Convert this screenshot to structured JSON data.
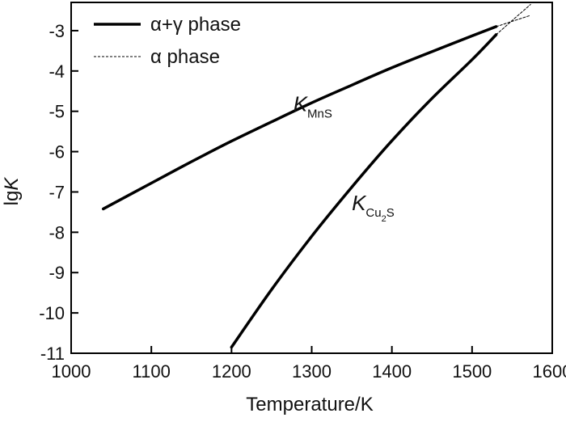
{
  "chart_data": {
    "type": "line",
    "xlabel": "Temperature/K",
    "ylabel_prefix": "lg",
    "ylabel_italic": "K",
    "xlim": [
      1000,
      1600
    ],
    "ylim": [
      -11,
      -2.3
    ],
    "xticks": [
      1000,
      1100,
      1200,
      1300,
      1400,
      1500,
      1600
    ],
    "yticks": [
      -3,
      -4,
      -5,
      -6,
      -7,
      -8,
      -9,
      -10,
      -11
    ],
    "legend": {
      "placement": "top-left",
      "entries": [
        {
          "label": "α+γ phase",
          "style": "solid"
        },
        {
          "label": "α phase",
          "style": "dashed"
        }
      ]
    },
    "series": [
      {
        "name": "KMnS",
        "phase": "α+γ",
        "style": "solid",
        "x": [
          1040,
          1100,
          1150,
          1200,
          1250,
          1300,
          1350,
          1400,
          1450,
          1500,
          1530
        ],
        "y": [
          -7.42,
          -6.78,
          -6.25,
          -5.74,
          -5.26,
          -4.79,
          -4.35,
          -3.92,
          -3.52,
          -3.13,
          -2.9
        ]
      },
      {
        "name": "KMnS",
        "phase": "α",
        "style": "dashed",
        "x": [
          1530,
          1550,
          1573
        ],
        "y": [
          -2.9,
          -2.77,
          -2.62
        ]
      },
      {
        "name": "KCu2S",
        "phase": "α+γ",
        "style": "solid",
        "x": [
          1200,
          1250,
          1300,
          1350,
          1400,
          1450,
          1500,
          1530
        ],
        "y": [
          -10.85,
          -9.42,
          -8.1,
          -6.88,
          -5.73,
          -4.68,
          -3.72,
          -3.1
        ]
      },
      {
        "name": "KCu2S",
        "phase": "α",
        "style": "dashed",
        "x": [
          1530,
          1550,
          1573
        ],
        "y": [
          -3.1,
          -2.75,
          -2.35
        ]
      }
    ],
    "annotations": [
      {
        "main": "K",
        "sub": "MnS",
        "subsub": "",
        "x": 1277,
        "y": -5.0
      },
      {
        "main": "K",
        "sub": "Cu",
        "subsub": "2",
        "sub2": "S",
        "x": 1350,
        "y": -7.45
      }
    ]
  }
}
